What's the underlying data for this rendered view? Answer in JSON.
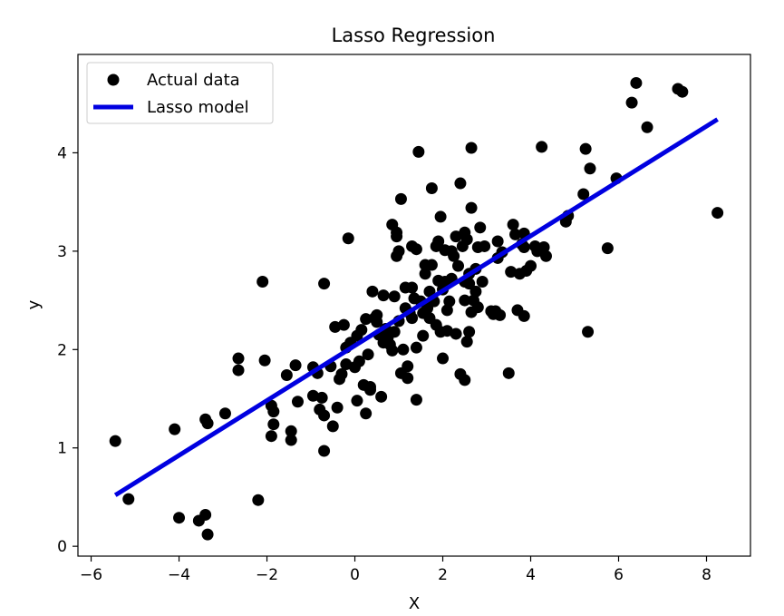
{
  "chart_data": {
    "type": "scatter",
    "title": "Lasso Regression",
    "xlabel": "X",
    "ylabel": "y",
    "xlim": [
      -6.3,
      9.0
    ],
    "ylim": [
      -0.1,
      5.0
    ],
    "xticks": [
      -6,
      -4,
      -2,
      0,
      2,
      4,
      6,
      8
    ],
    "yticks": [
      0,
      1,
      2,
      3,
      4
    ],
    "grid": false,
    "legend_position": "top-left",
    "series": [
      {
        "name": "Actual data",
        "kind": "scatter",
        "color": "#000000",
        "points": [
          [
            -5.45,
            1.07
          ],
          [
            -5.15,
            0.48
          ],
          [
            -4.1,
            1.19
          ],
          [
            -4.0,
            0.29
          ],
          [
            -3.55,
            0.26
          ],
          [
            -3.4,
            0.32
          ],
          [
            -3.35,
            0.12
          ],
          [
            -3.4,
            1.29
          ],
          [
            -3.35,
            1.25
          ],
          [
            -2.95,
            1.35
          ],
          [
            -2.65,
            1.91
          ],
          [
            -2.65,
            1.79
          ],
          [
            -2.2,
            0.47
          ],
          [
            -2.1,
            2.69
          ],
          [
            -2.05,
            1.89
          ],
          [
            -1.9,
            1.43
          ],
          [
            -1.85,
            1.37
          ],
          [
            -1.85,
            1.24
          ],
          [
            -1.9,
            1.12
          ],
          [
            -1.55,
            1.74
          ],
          [
            -1.45,
            1.17
          ],
          [
            -1.45,
            1.08
          ],
          [
            -1.35,
            1.84
          ],
          [
            -1.3,
            1.47
          ],
          [
            -0.95,
            1.82
          ],
          [
            -0.95,
            1.53
          ],
          [
            -0.85,
            1.76
          ],
          [
            -0.8,
            1.39
          ],
          [
            -0.75,
            1.51
          ],
          [
            -0.7,
            1.33
          ],
          [
            -0.7,
            2.67
          ],
          [
            -0.7,
            0.97
          ],
          [
            -0.55,
            1.83
          ],
          [
            -0.5,
            1.22
          ],
          [
            -0.45,
            2.23
          ],
          [
            -0.4,
            1.41
          ],
          [
            -0.35,
            1.7
          ],
          [
            -0.3,
            1.75
          ],
          [
            -0.25,
            2.25
          ],
          [
            -0.2,
            1.85
          ],
          [
            -0.2,
            2.02
          ],
          [
            -0.15,
            3.13
          ],
          [
            -0.1,
            2.07
          ],
          [
            0.0,
            1.82
          ],
          [
            0.05,
            1.48
          ],
          [
            0.05,
            2.14
          ],
          [
            0.1,
            1.88
          ],
          [
            0.15,
            2.2
          ],
          [
            0.2,
            1.64
          ],
          [
            0.25,
            1.35
          ],
          [
            0.25,
            2.31
          ],
          [
            0.3,
            1.95
          ],
          [
            0.35,
            1.59
          ],
          [
            0.35,
            1.62
          ],
          [
            0.4,
            2.59
          ],
          [
            0.45,
            2.32
          ],
          [
            0.5,
            2.28
          ],
          [
            0.5,
            2.35
          ],
          [
            0.55,
            2.15
          ],
          [
            0.6,
            1.52
          ],
          [
            0.65,
            2.55
          ],
          [
            0.65,
            2.07
          ],
          [
            0.7,
            2.21
          ],
          [
            0.75,
            2.12
          ],
          [
            0.8,
            2.05
          ],
          [
            0.85,
            1.99
          ],
          [
            0.85,
            3.27
          ],
          [
            0.9,
            2.54
          ],
          [
            0.9,
            2.18
          ],
          [
            0.95,
            2.95
          ],
          [
            0.95,
            3.19
          ],
          [
            0.95,
            3.15
          ],
          [
            1.0,
            2.29
          ],
          [
            1.0,
            3.0
          ],
          [
            1.05,
            3.53
          ],
          [
            1.05,
            1.76
          ],
          [
            1.1,
            2.0
          ],
          [
            1.15,
            2.42
          ],
          [
            1.15,
            2.63
          ],
          [
            1.2,
            1.83
          ],
          [
            1.2,
            1.71
          ],
          [
            1.25,
            2.37
          ],
          [
            1.3,
            2.63
          ],
          [
            1.3,
            2.32
          ],
          [
            1.3,
            3.05
          ],
          [
            1.35,
            2.52
          ],
          [
            1.4,
            3.02
          ],
          [
            1.4,
            2.02
          ],
          [
            1.4,
            1.49
          ],
          [
            1.45,
            4.01
          ],
          [
            1.5,
            2.49
          ],
          [
            1.55,
            2.14
          ],
          [
            1.55,
            2.37
          ],
          [
            1.6,
            2.86
          ],
          [
            1.6,
            2.77
          ],
          [
            1.65,
            2.42
          ],
          [
            1.7,
            2.32
          ],
          [
            1.7,
            2.59
          ],
          [
            1.75,
            2.86
          ],
          [
            1.75,
            3.64
          ],
          [
            1.8,
            2.49
          ],
          [
            1.85,
            2.25
          ],
          [
            1.85,
            3.05
          ],
          [
            1.9,
            2.7
          ],
          [
            1.9,
            3.1
          ],
          [
            1.95,
            3.35
          ],
          [
            1.95,
            2.18
          ],
          [
            2.0,
            1.91
          ],
          [
            2.0,
            2.61
          ],
          [
            2.05,
            3.01
          ],
          [
            2.05,
            2.69
          ],
          [
            2.1,
            2.4
          ],
          [
            2.1,
            2.19
          ],
          [
            2.15,
            2.49
          ],
          [
            2.2,
            2.72
          ],
          [
            2.2,
            3.0
          ],
          [
            2.25,
            2.95
          ],
          [
            2.3,
            2.16
          ],
          [
            2.3,
            3.15
          ],
          [
            2.35,
            2.85
          ],
          [
            2.4,
            3.69
          ],
          [
            2.4,
            1.75
          ],
          [
            2.45,
            3.05
          ],
          [
            2.5,
            2.69
          ],
          [
            2.5,
            3.19
          ],
          [
            2.5,
            2.5
          ],
          [
            2.5,
            1.69
          ],
          [
            2.55,
            2.08
          ],
          [
            2.55,
            3.12
          ],
          [
            2.6,
            2.18
          ],
          [
            2.6,
            2.67
          ],
          [
            2.6,
            2.77
          ],
          [
            2.65,
            3.44
          ],
          [
            2.65,
            2.38
          ],
          [
            2.65,
            4.05
          ],
          [
            2.7,
            2.5
          ],
          [
            2.75,
            2.59
          ],
          [
            2.75,
            2.82
          ],
          [
            2.8,
            3.04
          ],
          [
            2.8,
            2.43
          ],
          [
            2.85,
            3.24
          ],
          [
            2.9,
            2.69
          ],
          [
            2.95,
            3.05
          ],
          [
            3.1,
            2.39
          ],
          [
            3.15,
            2.36
          ],
          [
            3.2,
            2.39
          ],
          [
            3.25,
            2.93
          ],
          [
            3.25,
            3.1
          ],
          [
            3.3,
            2.35
          ],
          [
            3.35,
            2.99
          ],
          [
            3.5,
            1.76
          ],
          [
            3.55,
            2.79
          ],
          [
            3.6,
            3.27
          ],
          [
            3.65,
            3.17
          ],
          [
            3.7,
            2.4
          ],
          [
            3.75,
            2.77
          ],
          [
            3.8,
            3.07
          ],
          [
            3.85,
            2.34
          ],
          [
            3.85,
            3.18
          ],
          [
            3.85,
            3.04
          ],
          [
            3.9,
            2.8
          ],
          [
            4.0,
            2.85
          ],
          [
            4.1,
            3.05
          ],
          [
            4.15,
            3.0
          ],
          [
            4.25,
            4.06
          ],
          [
            4.3,
            3.04
          ],
          [
            4.35,
            2.95
          ],
          [
            4.8,
            3.3
          ],
          [
            4.85,
            3.36
          ],
          [
            5.2,
            3.58
          ],
          [
            5.25,
            4.04
          ],
          [
            5.3,
            2.18
          ],
          [
            5.35,
            3.84
          ],
          [
            5.75,
            3.03
          ],
          [
            5.95,
            3.74
          ],
          [
            6.3,
            4.51
          ],
          [
            6.4,
            4.71
          ],
          [
            6.65,
            4.26
          ],
          [
            7.35,
            4.65
          ],
          [
            7.45,
            4.62
          ],
          [
            8.25,
            3.39
          ]
        ]
      },
      {
        "name": "Lasso model",
        "kind": "line",
        "color": "#0000e0",
        "points": [
          [
            -5.45,
            0.52
          ],
          [
            8.25,
            4.34
          ]
        ]
      }
    ]
  }
}
